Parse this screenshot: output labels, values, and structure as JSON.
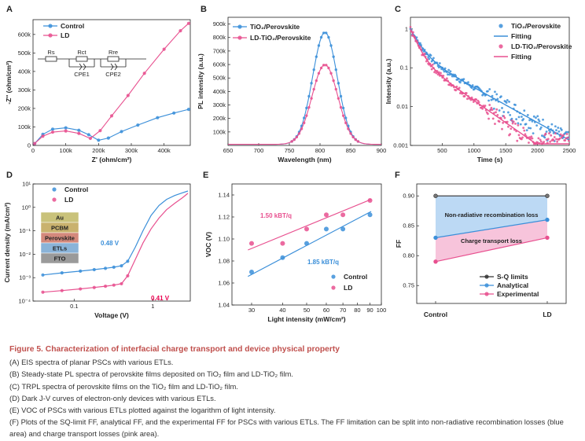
{
  "panels": {
    "A": {
      "letter": "A",
      "chart_data": {
        "type": "scatter",
        "xlabel": "Z' (ohm/cm²)",
        "ylabel": "-Z'' (ohm/cm²)",
        "xlim": [
          0,
          480000
        ],
        "ylim": [
          0,
          680000
        ],
        "xticks": [
          {
            "v": 0,
            "t": "0"
          },
          {
            "v": 100000,
            "t": "100k"
          },
          {
            "v": 200000,
            "t": "200k"
          },
          {
            "v": 300000,
            "t": "300k"
          },
          {
            "v": 400000,
            "t": "400k"
          }
        ],
        "yticks": [
          {
            "v": 0,
            "t": "0"
          },
          {
            "v": 100000,
            "t": "100k"
          },
          {
            "v": 200000,
            "t": "200k"
          },
          {
            "v": 300000,
            "t": "300k"
          },
          {
            "v": 400000,
            "t": "400k"
          },
          {
            "v": 500000,
            "t": "500k"
          },
          {
            "v": 600000,
            "t": "600k"
          }
        ],
        "series": [
          {
            "name": "Control",
            "color": "#3b8fd9",
            "x": [
              5000,
              30000,
              60000,
              100000,
              140000,
              170000,
              200000,
              230000,
              270000,
              320000,
              380000,
              430000,
              475000
            ],
            "y": [
              10000,
              60000,
              88000,
              95000,
              82000,
              58000,
              28000,
              40000,
              75000,
              110000,
              150000,
              175000,
              195000
            ]
          },
          {
            "name": "LD",
            "color": "#e8508f",
            "x": [
              5000,
              30000,
              60000,
              100000,
              140000,
              175000,
              205000,
              240000,
              290000,
              340000,
              400000,
              450000,
              475000
            ],
            "y": [
              10000,
              50000,
              72000,
              78000,
              65000,
              38000,
              80000,
              160000,
              270000,
              390000,
              520000,
              620000,
              660000
            ]
          }
        ],
        "circuit_labels": [
          "Rs",
          "Rct",
          "CPE1",
          "Rre",
          "CPE2"
        ]
      }
    },
    "B": {
      "letter": "B",
      "chart_data": {
        "type": "line",
        "xlabel": "Wavelength (nm)",
        "ylabel": "PL intensity (a.u.)",
        "xlim": [
          650,
          900
        ],
        "ylim": [
          0,
          950000
        ],
        "xticks": [
          {
            "v": 650,
            "t": "650"
          },
          {
            "v": 700,
            "t": "700"
          },
          {
            "v": 750,
            "t": "750"
          },
          {
            "v": 800,
            "t": "800"
          },
          {
            "v": 850,
            "t": "850"
          },
          {
            "v": 900,
            "t": "900"
          }
        ],
        "yticks": [
          {
            "v": 100000,
            "t": "100k"
          },
          {
            "v": 200000,
            "t": "200k"
          },
          {
            "v": 300000,
            "t": "300k"
          },
          {
            "v": 400000,
            "t": "400k"
          },
          {
            "v": 500000,
            "t": "500k"
          },
          {
            "v": 600000,
            "t": "600k"
          },
          {
            "v": 700000,
            "t": "700k"
          },
          {
            "v": 800000,
            "t": "800k"
          },
          {
            "v": 900000,
            "t": "900k"
          }
        ],
        "series": [
          {
            "name": "TiO₂/Perovskite",
            "color": "#3b8fd9",
            "peak_x": 808,
            "peak_y": 830000,
            "width": 20
          },
          {
            "name": "LD-TiO₂/Perovskite",
            "color": "#e8508f",
            "peak_x": 808,
            "peak_y": 590000,
            "width": 21
          }
        ]
      }
    },
    "C": {
      "letter": "C",
      "chart_data": {
        "type": "scatter",
        "xlabel": "Time (s)",
        "ylabel": "Intensity (a.u.)",
        "xlim": [
          0,
          2500
        ],
        "ylim": [
          0.001,
          2
        ],
        "yscale": "log",
        "xticks": [
          {
            "v": 500,
            "t": "500"
          },
          {
            "v": 1000,
            "t": "1000"
          },
          {
            "v": 1500,
            "t": "1500"
          },
          {
            "v": 2000,
            "t": "2000"
          },
          {
            "v": 2500,
            "t": "2500"
          }
        ],
        "yticks": [
          {
            "v": 0.001,
            "t": "0.001"
          },
          {
            "v": 0.01,
            "t": "0.01"
          },
          {
            "v": 0.1,
            "t": "0.1"
          },
          {
            "v": 1,
            "t": "1"
          }
        ],
        "legend": [
          "TiO₂/Perovskite",
          "Fitting",
          "LD-TiO₂/Perovskite",
          "Fitting"
        ],
        "series": [
          {
            "name": "TiO₂/Perovskite",
            "color": "#3b8fd9",
            "a1": 0.75,
            "t1": 120,
            "a2": 0.25,
            "t2": 480
          },
          {
            "name": "LD-TiO₂/Perovskite",
            "color": "#e8508f",
            "a1": 0.8,
            "t1": 100,
            "a2": 0.2,
            "t2": 380
          }
        ]
      }
    },
    "D": {
      "letter": "D",
      "chart_data": {
        "type": "line",
        "xlabel": "Voltage (V)",
        "ylabel": "Current density (mA/cm²)",
        "xscale": "log",
        "yscale": "log",
        "xlim": [
          0.03,
          3
        ],
        "ylim": [
          0.0001,
          10
        ],
        "xticks": [
          {
            "v": 0.1,
            "t": "0.1"
          },
          {
            "v": 1,
            "t": "1"
          }
        ],
        "yticks": [
          {
            "v": 0.0001,
            "t": "10⁻⁴"
          },
          {
            "v": 0.001,
            "t": "10⁻³"
          },
          {
            "v": 0.01,
            "t": "10⁻²"
          },
          {
            "v": 0.1,
            "t": "10⁻¹"
          },
          {
            "v": 1,
            "t": "10⁰"
          },
          {
            "v": 10,
            "t": "10¹"
          }
        ],
        "series": [
          {
            "name": "Control",
            "color": "#3b8fd9",
            "x": [
              0.04,
              0.07,
              0.12,
              0.18,
              0.25,
              0.32,
              0.4,
              0.48,
              0.6,
              0.75,
              0.95,
              1.2,
              1.5,
              1.9,
              2.4,
              2.8
            ],
            "y": [
              0.0013,
              0.0016,
              0.0019,
              0.0022,
              0.0025,
              0.0028,
              0.0032,
              0.005,
              0.02,
              0.1,
              0.45,
              1.2,
              2.2,
              3.2,
              4.2,
              5.0
            ]
          },
          {
            "name": "LD",
            "color": "#e8508f",
            "x": [
              0.04,
              0.07,
              0.12,
              0.18,
              0.25,
              0.32,
              0.4,
              0.48,
              0.6,
              0.75,
              0.95,
              1.2,
              1.5,
              1.9,
              2.4,
              2.8
            ],
            "y": [
              0.00024,
              0.00028,
              0.00033,
              0.00038,
              0.00043,
              0.00048,
              0.00055,
              0.0012,
              0.006,
              0.03,
              0.12,
              0.35,
              0.8,
              1.5,
              2.6,
              4.0
            ]
          }
        ],
        "annotations": [
          {
            "text": "0.48 V",
            "color": "#3b8fd9"
          },
          {
            "text": "0.41 V",
            "color": "#e8004f"
          }
        ],
        "device_stack": [
          {
            "label": "Au",
            "color": "#c9c27a"
          },
          {
            "label": "PCBM",
            "color": "#c9b26e"
          },
          {
            "label": "Perovskite",
            "color": "#d4897c"
          },
          {
            "label": "ETLs",
            "color": "#8ab3d8"
          },
          {
            "label": "FTO",
            "color": "#9a9a9a"
          }
        ]
      }
    },
    "E": {
      "letter": "E",
      "chart_data": {
        "type": "scatter",
        "xlabel": "Light intensity (mW/cm²)",
        "ylabel": "VOC (V)",
        "xscale": "log",
        "xlim": [
          25,
          100
        ],
        "ylim": [
          1.04,
          1.15
        ],
        "xticks": [
          {
            "v": 30,
            "t": "30"
          },
          {
            "v": 40,
            "t": "40"
          },
          {
            "v": 50,
            "t": "50"
          },
          {
            "v": 60,
            "t": "60"
          },
          {
            "v": 70,
            "t": "70"
          },
          {
            "v": 80,
            "t": "80"
          },
          {
            "v": 90,
            "t": "90"
          },
          {
            "v": 100,
            "t": "100"
          }
        ],
        "yticks": [
          {
            "v": 1.04,
            "t": "1.04"
          },
          {
            "v": 1.06,
            "t": "1.06"
          },
          {
            "v": 1.08,
            "t": "1.08"
          },
          {
            "v": 1.1,
            "t": "1.10"
          },
          {
            "v": 1.12,
            "t": "1.12"
          },
          {
            "v": 1.14,
            "t": "1.14"
          }
        ],
        "series": [
          {
            "name": "Control",
            "color": "#3b8fd9",
            "x": [
              30,
              40,
              50,
              60,
              70,
              90
            ],
            "y": [
              1.07,
              1.083,
              1.096,
              1.109,
              1.109,
              1.122
            ]
          },
          {
            "name": "LD",
            "color": "#e8508f",
            "x": [
              30,
              40,
              50,
              60,
              70,
              90
            ],
            "y": [
              1.096,
              1.096,
              1.109,
              1.122,
              1.122,
              1.135
            ]
          }
        ],
        "annotations": [
          {
            "text": "1.50 kBT/q",
            "color": "#e8508f"
          },
          {
            "text": "1.85 kBT/q",
            "color": "#3b8fd9"
          }
        ],
        "fits": [
          {
            "color": "#3b8fd9",
            "x": [
              29,
              91
            ],
            "y": [
              1.066,
              1.125
            ]
          },
          {
            "color": "#e8508f",
            "x": [
              29,
              91
            ],
            "y": [
              1.09,
              1.136
            ]
          }
        ]
      }
    },
    "F": {
      "letter": "F",
      "chart_data": {
        "type": "line",
        "ylabel": "FF",
        "categories": [
          "Control",
          "LD"
        ],
        "ylim": [
          0.72,
          0.92
        ],
        "yticks": [
          {
            "v": 0.75,
            "t": "0.75"
          },
          {
            "v": 0.8,
            "t": "0.80"
          },
          {
            "v": 0.85,
            "t": "0.85"
          },
          {
            "v": 0.9,
            "t": "0.90"
          }
        ],
        "series": [
          {
            "name": "S-Q limits",
            "color": "#333333",
            "values": [
              0.9,
              0.9
            ]
          },
          {
            "name": "Analytical",
            "color": "#3b8fd9",
            "values": [
              0.83,
              0.86
            ]
          },
          {
            "name": "Experimental",
            "color": "#e8508f",
            "values": [
              0.79,
              0.83
            ]
          }
        ],
        "regions": [
          {
            "label": "Non-radiative recombination loss",
            "color": "#bcd9f4"
          },
          {
            "label": "Charge transport loss",
            "color": "#f7c4db"
          }
        ]
      }
    }
  },
  "caption": {
    "title": "Figure 5.  Characterization of interfacial charge transport and device physical property",
    "lines": [
      "(A) EIS spectra of planar PSCs with various ETLs.",
      "(B) Steady-state PL spectra of perovskite films deposited on TiO₂ film and LD-TiO₂ film.",
      "(C) TRPL spectra of perovskite films on the TiO₂ film and LD-TiO₂ film.",
      "(D) Dark J-V curves of electron-only devices with various ETLs.",
      "(E) VOC of PSCs with various ETLs plotted against the logarithm of light intensity.",
      "(F) Plots of the SQ-limit FF, analytical FF, and the experimental FF for PSCs with various ETLs. The FF limitation can be split into non-radiative recombination losses (blue area) and charge transport losses (pink area)."
    ]
  }
}
